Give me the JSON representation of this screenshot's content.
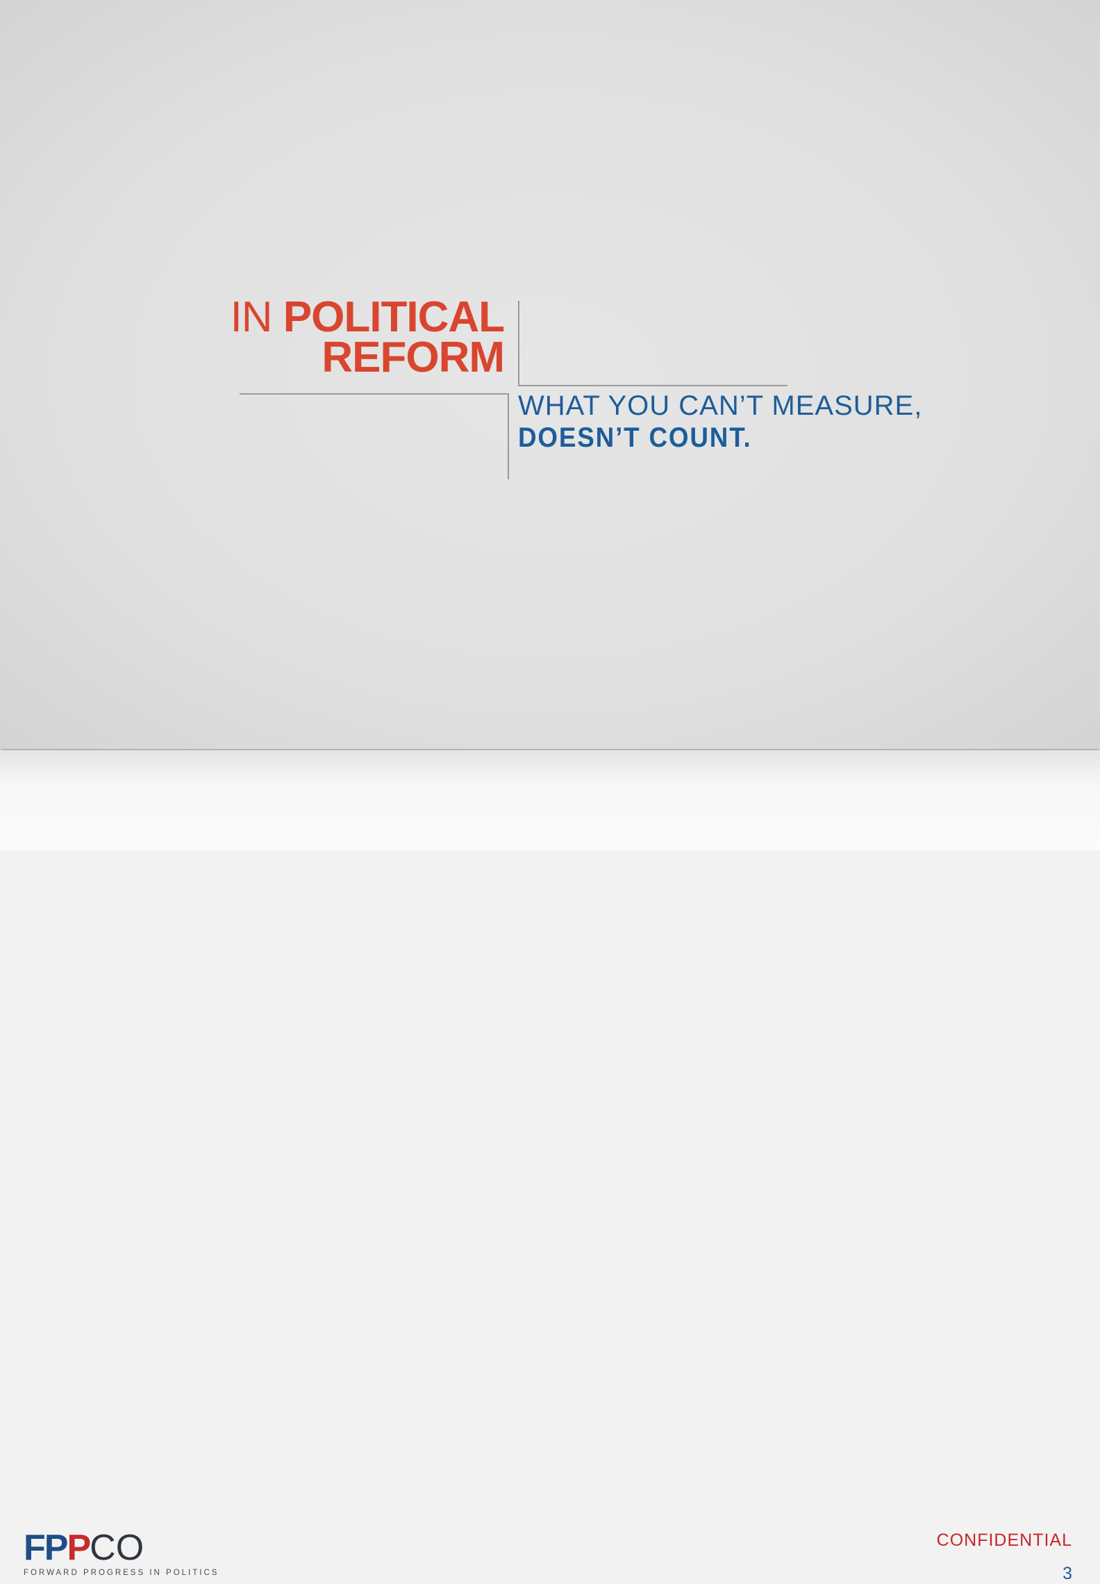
{
  "headline": {
    "line1_light": "IN",
    "line1_bold": "POLITICAL",
    "line2_bold": "REFORM"
  },
  "tagline": {
    "line1": "WHAT YOU CAN’T MEASURE,",
    "line2": "DOESN’T COUNT."
  },
  "footer": {
    "logo_fp": "FP",
    "logo_p": "P",
    "logo_co": "CO",
    "logo_tagline": "FORWARD PROGRESS IN POLITICS",
    "confidential": "CONFIDENTIAL",
    "page_number": "3"
  },
  "colors": {
    "headline_red": "#d9452f",
    "tagline_blue": "#1d5d9a",
    "rule_gray": "#9a9a9a"
  }
}
